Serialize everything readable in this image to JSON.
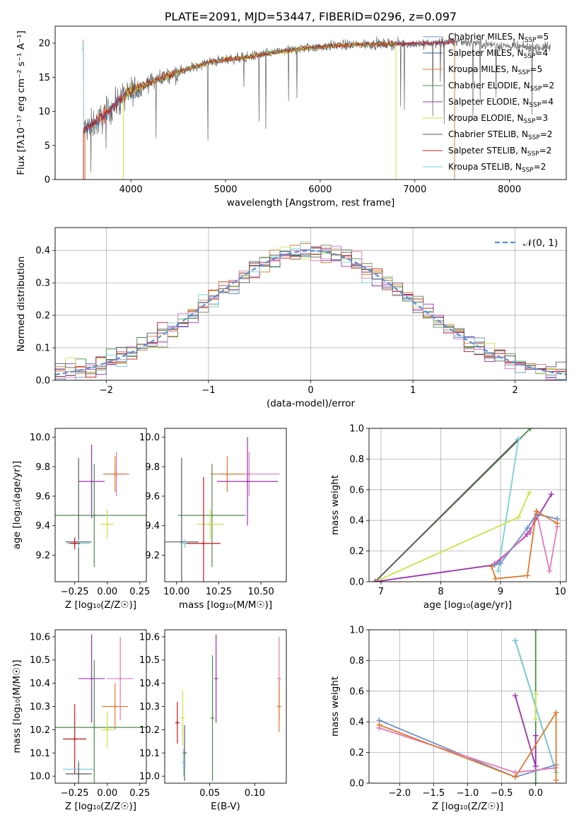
{
  "colors": {
    "chabrier_miles": "#6f8fc8",
    "salpeter_miles": "#3a5fa8",
    "kroupa_miles": "#e07a2f",
    "chabrier_elodie": "#4e8a4e",
    "salpeter_elodie": "#9b30b0",
    "kroupa_elodie": "#cde24a",
    "chabrier_stelib": "#5a5a5a",
    "salpeter_stelib": "#c0181e",
    "kroupa_stelib": "#78d0d8",
    "pink": "#e27ab6",
    "gaussian": "#5b8fd6",
    "grid": "#b0b0b0"
  },
  "chart_data": [
    {
      "id": "spectrum",
      "type": "line",
      "title": "PLATE=2091, MJD=53447, FIBERID=0296, z=0.097",
      "xlabel": "wavelength [Angstrom, rest frame]",
      "ylabel": "Flux [fλ10⁻¹⁷ erg cm⁻² s⁻¹ A⁻¹]",
      "xlim": [
        3200,
        8600
      ],
      "ylim": [
        0,
        22.5
      ],
      "xticks": [
        "4000",
        "5000",
        "6000",
        "7000",
        "8000"
      ],
      "yticks": [
        "0",
        "5",
        "10",
        "15",
        "20"
      ],
      "legend_position": "right",
      "legend": [
        {
          "main": "Chabrier MILES, N",
          "sub": "SSP",
          "tail": "=5",
          "color": "chabrier_miles"
        },
        {
          "main": "Salpeter MILES, N",
          "sub": "SSP",
          "tail": "=4",
          "color": "salpeter_miles"
        },
        {
          "main": "Kroupa MILES, N",
          "sub": "SSP",
          "tail": "=5",
          "color": "kroupa_miles"
        },
        {
          "main": "Chabrier ELODIE, N",
          "sub": "SSP",
          "tail": "=2",
          "color": "chabrier_elodie"
        },
        {
          "main": "Salpeter ELODIE, N",
          "sub": "SSP",
          "tail": "=4",
          "color": "salpeter_elodie"
        },
        {
          "main": "Kroupa ELODIE, N",
          "sub": "SSP",
          "tail": "=3",
          "color": "kroupa_elodie"
        },
        {
          "main": "Chabrier STELIB, N",
          "sub": "SSP",
          "tail": "=2",
          "color": "chabrier_stelib"
        },
        {
          "main": "Salpeter STELIB, N",
          "sub": "SSP",
          "tail": "=2",
          "color": "salpeter_stelib"
        },
        {
          "main": "Kroupa STELIB, N",
          "sub": "SSP",
          "tail": "=2",
          "color": "kroupa_stelib"
        }
      ],
      "continuum": [
        [
          3500,
          7.3
        ],
        [
          3650,
          8.5
        ],
        [
          3800,
          10.5
        ],
        [
          3950,
          12.5
        ],
        [
          4050,
          13.2
        ],
        [
          4200,
          14.3
        ],
        [
          4400,
          15.3
        ],
        [
          4600,
          16.2
        ],
        [
          4800,
          17.1
        ],
        [
          5000,
          17.6
        ],
        [
          5200,
          17.9
        ],
        [
          5500,
          18.6
        ],
        [
          5800,
          19.2
        ],
        [
          6100,
          19.6
        ],
        [
          6400,
          19.8
        ],
        [
          6800,
          19.9
        ],
        [
          7200,
          20.0
        ],
        [
          7500,
          20.3
        ],
        [
          7800,
          19.8
        ],
        [
          8100,
          19.4
        ],
        [
          8400,
          19.4
        ]
      ],
      "model_ranges": [
        {
          "color": "chabrier_stelib",
          "x": [
            3490,
            8430
          ]
        },
        {
          "color": "kroupa_stelib",
          "x": [
            3490,
            3940
          ]
        },
        {
          "color": "kroupa_stelib",
          "x": [
            3990,
            7350
          ]
        },
        {
          "color": "kroupa_miles",
          "x": [
            3520,
            7420
          ]
        },
        {
          "color": "salpeter_miles",
          "x": [
            3500,
            7420
          ]
        },
        {
          "color": "chabrier_elodie",
          "x": [
            3920,
            6800
          ]
        },
        {
          "color": "kroupa_elodie",
          "x": [
            3930,
            6800
          ]
        },
        {
          "color": "salpeter_stelib",
          "x": [
            3500,
            7420
          ]
        }
      ]
    },
    {
      "id": "residuals",
      "type": "line",
      "xlabel": "(data-model)/error",
      "ylabel": "Normed distribution",
      "xlim": [
        -2.5,
        2.5
      ],
      "ylim": [
        0,
        0.47
      ],
      "xticks": [
        "−2",
        "−1",
        "0",
        "1",
        "2"
      ],
      "yticks": [
        "0.0",
        "0.1",
        "0.2",
        "0.3",
        "0.4"
      ],
      "grid": true,
      "legend_position": "top-right",
      "legend": [
        {
          "label": "𝒩(0, 1)",
          "color": "gaussian"
        }
      ],
      "bin_width": 0.1,
      "series_colors": [
        "chabrier_miles",
        "kroupa_miles",
        "chabrier_elodie",
        "salpeter_elodie",
        "kroupa_elodie",
        "salpeter_stelib",
        "kroupa_stelib",
        "pink",
        "chabrier_stelib"
      ]
    },
    {
      "id": "age_vs_Z",
      "type": "scatter",
      "xlabel": "Z [log₁₀(Z/Z☉)]",
      "ylabel": "age  [log₁₀(age/yr)]",
      "xlim": [
        -0.4,
        0.3
      ],
      "ylim": [
        9.02,
        10.06
      ],
      "xticks": [
        "−0.25",
        "0.00",
        "0.25"
      ],
      "yticks": [
        "9.2",
        "9.4",
        "9.6",
        "9.8",
        "10.0"
      ],
      "points": [
        {
          "x": 0.07,
          "y": 9.75,
          "xerr": 0.1,
          "yerr": 0.15,
          "color": "pink"
        },
        {
          "x": 0.06,
          "y": 9.75,
          "xerr": 0.09,
          "yerr": 0.12,
          "color": "kroupa_miles"
        },
        {
          "x": -0.12,
          "y": 9.7,
          "xerr": 0.1,
          "yerr": 0.25,
          "color": "salpeter_elodie"
        },
        {
          "x": -0.1,
          "y": 9.47,
          "xerr": 0.6,
          "yerr": 0.35,
          "color": "chabrier_elodie"
        },
        {
          "x": 0.0,
          "y": 9.41,
          "xerr": 0.05,
          "yerr": 0.1,
          "color": "kroupa_elodie"
        },
        {
          "x": -0.22,
          "y": 9.29,
          "xerr": 0.1,
          "yerr": 0.57,
          "color": "chabrier_stelib"
        },
        {
          "x": -0.22,
          "y": 9.28,
          "xerr": 0.09,
          "yerr": 0.03,
          "color": "kroupa_stelib"
        },
        {
          "x": -0.25,
          "y": 9.28,
          "xerr": 0.04,
          "yerr": 0.04,
          "color": "salpeter_stelib"
        }
      ]
    },
    {
      "id": "age_vs_mass",
      "type": "scatter",
      "xlabel": "mass [log₁₀(M/M☉)]",
      "ylabel": "",
      "xlim": [
        9.93,
        10.65
      ],
      "ylim": [
        9.02,
        10.06
      ],
      "xticks": [
        "10.00",
        "10.25",
        "10.50"
      ],
      "yticks": [
        "9.2",
        "9.4",
        "9.6",
        "9.8",
        "10.0"
      ],
      "points": [
        {
          "x": 10.43,
          "y": 9.75,
          "xerr": 0.18,
          "yerr": 0.15,
          "color": "pink"
        },
        {
          "x": 10.3,
          "y": 9.75,
          "xerr": 0.1,
          "yerr": 0.12,
          "color": "kroupa_miles"
        },
        {
          "x": 10.42,
          "y": 9.7,
          "xerr": 0.18,
          "yerr": 0.3,
          "color": "salpeter_elodie"
        },
        {
          "x": 10.21,
          "y": 9.47,
          "xerr": 0.2,
          "yerr": 0.35,
          "color": "chabrier_elodie"
        },
        {
          "x": 10.2,
          "y": 9.41,
          "xerr": 0.08,
          "yerr": 0.1,
          "color": "kroupa_elodie"
        },
        {
          "x": 10.03,
          "y": 9.29,
          "xerr": 0.1,
          "yerr": 0.57,
          "color": "chabrier_stelib"
        },
        {
          "x": 10.05,
          "y": 9.28,
          "xerr": 0.03,
          "yerr": 0.03,
          "color": "kroupa_stelib"
        },
        {
          "x": 10.16,
          "y": 9.28,
          "xerr": 0.1,
          "yerr": 0.45,
          "color": "salpeter_stelib"
        }
      ]
    },
    {
      "id": "weight_vs_age",
      "type": "line",
      "xlabel": "age  [log₁₀(age/yr)]",
      "ylabel": "mass weight",
      "xlim": [
        6.8,
        10.1
      ],
      "ylim": [
        0,
        1
      ],
      "xticks": [
        "7",
        "8",
        "9",
        "10"
      ],
      "yticks": [
        "0.0",
        "0.2",
        "0.4",
        "0.6",
        "0.8",
        "1.0"
      ],
      "grid": true,
      "series": [
        {
          "color": "chabrier_elodie",
          "x": [
            6.9,
            9.5
          ],
          "y": [
            0.0,
            1.0
          ]
        },
        {
          "color": "chabrier_stelib",
          "x": [
            6.9,
            9.3
          ],
          "y": [
            0.0,
            0.93
          ]
        },
        {
          "color": "kroupa_stelib",
          "x": [
            8.96,
            9.3
          ],
          "y": [
            0.07,
            0.93
          ]
        },
        {
          "color": "kroupa_elodie",
          "x": [
            6.9,
            9.3,
            9.48
          ],
          "y": [
            0.0,
            0.42,
            0.58
          ]
        },
        {
          "color": "salpeter_elodie",
          "x": [
            6.9,
            8.9,
            9.45,
            9.85
          ],
          "y": [
            0.0,
            0.11,
            0.31,
            0.57
          ]
        },
        {
          "color": "pink",
          "x": [
            8.9,
            9.5,
            9.6,
            9.82,
            9.95
          ],
          "y": [
            0.12,
            0.32,
            0.46,
            0.07,
            0.36
          ]
        },
        {
          "color": "chabrier_miles",
          "x": [
            8.9,
            9.0,
            9.45,
            9.6,
            9.95
          ],
          "y": [
            0.11,
            0.12,
            0.35,
            0.44,
            0.41
          ]
        },
        {
          "color": "kroupa_miles",
          "x": [
            8.85,
            8.92,
            9.45,
            9.6,
            9.95
          ],
          "y": [
            0.1,
            0.02,
            0.04,
            0.46,
            0.38
          ]
        }
      ]
    },
    {
      "id": "mass_vs_Z",
      "type": "scatter",
      "xlabel": "Z [log₁₀(Z/Z☉)]",
      "ylabel": "mass [log₁₀(M/M☉)]",
      "xlim": [
        -0.4,
        0.3
      ],
      "ylim": [
        9.97,
        10.63
      ],
      "xticks": [
        "−0.25",
        "0.00",
        "0.25"
      ],
      "yticks": [
        "10.0",
        "10.1",
        "10.2",
        "10.3",
        "10.4",
        "10.5",
        "10.6"
      ],
      "points": [
        {
          "x": 0.1,
          "y": 10.42,
          "xerr": 0.1,
          "yerr": 0.18,
          "color": "pink"
        },
        {
          "x": -0.12,
          "y": 10.42,
          "xerr": 0.1,
          "yerr": 0.19,
          "color": "salpeter_elodie"
        },
        {
          "x": 0.06,
          "y": 10.3,
          "xerr": 0.1,
          "yerr": 0.1,
          "color": "kroupa_miles"
        },
        {
          "x": -0.1,
          "y": 10.21,
          "xerr": 0.4,
          "yerr": 0.29,
          "color": "chabrier_elodie"
        },
        {
          "x": 0.0,
          "y": 10.2,
          "xerr": 0.05,
          "yerr": 0.08,
          "color": "kroupa_elodie"
        },
        {
          "x": -0.25,
          "y": 10.16,
          "xerr": 0.09,
          "yerr": 0.15,
          "color": "salpeter_stelib"
        },
        {
          "x": -0.22,
          "y": 10.03,
          "xerr": 0.12,
          "yerr": 0.04,
          "color": "kroupa_stelib"
        },
        {
          "x": -0.22,
          "y": 10.01,
          "xerr": 0.1,
          "yerr": 0.05,
          "color": "chabrier_stelib"
        }
      ]
    },
    {
      "id": "mass_vs_ebv",
      "type": "scatter",
      "xlabel": "E(B-V)",
      "ylabel": "",
      "xlim": [
        0.0,
        0.135
      ],
      "ylim": [
        9.97,
        10.63
      ],
      "xticks": [
        "0.05",
        "0.10"
      ],
      "yticks": [
        "10.0",
        "10.1",
        "10.2",
        "10.3",
        "10.4",
        "10.5",
        "10.6"
      ],
      "points": [
        {
          "x": 0.127,
          "y": 10.42,
          "yerr": 0.18,
          "color": "pink"
        },
        {
          "x": 0.057,
          "y": 10.42,
          "yerr": 0.19,
          "color": "salpeter_elodie"
        },
        {
          "x": 0.127,
          "y": 10.3,
          "yerr": 0.11,
          "color": "kroupa_miles"
        },
        {
          "x": 0.053,
          "y": 10.25,
          "yerr": 0.27,
          "color": "chabrier_elodie"
        },
        {
          "x": 0.02,
          "y": 10.25,
          "yerr": 0.12,
          "color": "kroupa_elodie"
        },
        {
          "x": 0.014,
          "y": 10.23,
          "yerr": 0.09,
          "color": "salpeter_stelib"
        },
        {
          "x": 0.022,
          "y": 10.1,
          "yerr": 0.12,
          "color": "chabrier_stelib"
        },
        {
          "x": 0.021,
          "y": 10.06,
          "yerr": 0.06,
          "color": "kroupa_stelib"
        }
      ]
    },
    {
      "id": "weight_vs_Z",
      "type": "line",
      "xlabel": "Z [log₁₀(Z/Z☉)]",
      "ylabel": "mass weight",
      "xlim": [
        -2.45,
        0.45
      ],
      "ylim": [
        0,
        1
      ],
      "xticks": [
        "−2.0",
        "−1.5",
        "−1.0",
        "−0.5",
        "0.0"
      ],
      "yticks": [
        "0.0",
        "0.2",
        "0.4",
        "0.6",
        "0.8",
        "1.0"
      ],
      "grid": true,
      "series": [
        {
          "color": "chabrier_stelib",
          "x": [
            -0.3,
            0.3
          ],
          "y": [
            0.93,
            0.07
          ]
        },
        {
          "color": "kroupa_stelib",
          "x": [
            -0.3,
            0.3
          ],
          "y": [
            0.93,
            0.07
          ]
        },
        {
          "color": "chabrier_elodie",
          "x": [
            0.0,
            0.0
          ],
          "y": [
            0.0,
            1.0
          ]
        },
        {
          "color": "kroupa_elodie",
          "x": [
            0.0,
            0.0
          ],
          "y": [
            0.42,
            0.58
          ]
        },
        {
          "color": "salpeter_elodie",
          "x": [
            -0.3,
            0.0,
            0.0
          ],
          "y": [
            0.57,
            0.11,
            0.31
          ]
        },
        {
          "color": "chabrier_miles",
          "x": [
            -2.3,
            -0.3,
            0.3
          ],
          "y": [
            0.41,
            0.04,
            0.12
          ]
        },
        {
          "color": "pink",
          "x": [
            -2.3,
            -0.3,
            0.3
          ],
          "y": [
            0.36,
            0.07,
            0.1
          ]
        },
        {
          "color": "kroupa_miles",
          "x": [
            -2.3,
            -0.3,
            0.3,
            0.3
          ],
          "y": [
            0.38,
            0.04,
            0.46,
            0.02
          ]
        }
      ]
    }
  ]
}
